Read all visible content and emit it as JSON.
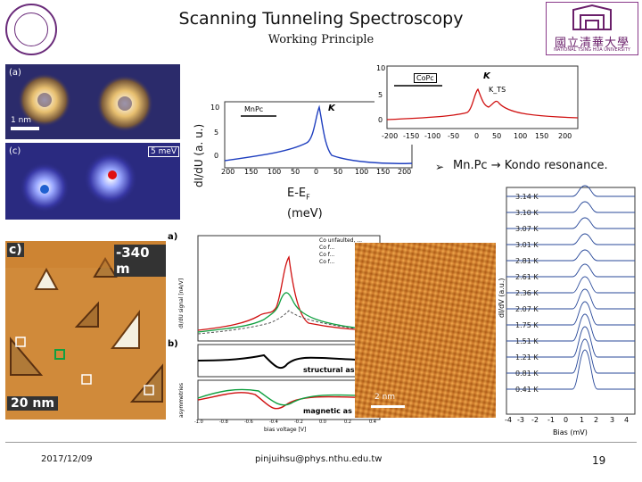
{
  "header": {
    "title": "Scanning Tunneling Spectroscopy",
    "subtitle": "Working Principle",
    "logo_text_cn": "國立清華大學",
    "logo_text_en": "NATIONAL TSING HUA UNIVERSITY"
  },
  "stm_panels": {
    "a_label": "(a)",
    "a_scale": "1 nm",
    "c_label": "(c)",
    "c_scale": "5 meV"
  },
  "spectrum_plot": {
    "ylabel": "dI/dU (a. u.)",
    "legend": "MnPc",
    "peak_label": "K",
    "y_ticks": [
      "10",
      "5",
      "0"
    ],
    "x_ticks": [
      "200",
      "150",
      "100",
      "50",
      "0",
      "50",
      "100",
      "150",
      "200"
    ]
  },
  "top_right_plot": {
    "legend": "CoPc",
    "peak_label": "K",
    "side_peak_label": "K_TS",
    "y_ticks": [
      "10",
      "5",
      "0"
    ],
    "x_ticks": [
      "-200",
      "-150",
      "-100",
      "-50",
      "0",
      "50",
      "100",
      "150",
      "200"
    ]
  },
  "xlabel": {
    "line1": "E-E",
    "sub": "F",
    "line2": "(meV)"
  },
  "bullet": {
    "marker": "➢",
    "text": "Mn.Pc → Kondo resonance."
  },
  "triangles_panel": {
    "label": "c)",
    "bias": "-340 m",
    "scale": "20 nm"
  },
  "spectra_panel": {
    "label_a": "a)",
    "label_b": "b)",
    "legend": [
      "Co unfaulted, ...",
      "Co f...",
      "Co f...",
      "Co f..."
    ],
    "ylabel_a": "dI/dU signal [nA/V]",
    "ylabel_b": "asymmetries",
    "text_structural": "structural as",
    "text_magnetic": "magnetic as",
    "xlabel": "bias voltage [V]",
    "x_ticks": [
      "-1.0",
      "-0.8",
      "-0.6",
      "-0.4",
      "-0.2",
      "0.0",
      "0.2",
      "0.4"
    ]
  },
  "lattice_panel": {
    "scale": "2 nm"
  },
  "temperature_panel": {
    "temps": [
      "3.14 K",
      "3.10 K",
      "3.07 K",
      "3.01 K",
      "2.81 K",
      "2.61 K",
      "2.36 K",
      "2.07 K",
      "1.75 K",
      "1.51 K",
      "1.21 K",
      "0.81 K",
      "0.41 K"
    ],
    "ylabel": "dI/dV (a.u.)",
    "x_ticks": [
      "-4",
      "-3",
      "-2",
      "-1",
      "0",
      "1",
      "2",
      "3",
      "4"
    ],
    "xlabel": "Bias (mV)"
  },
  "footer": {
    "date": "2017/12/09",
    "email": "pinjuihsu@phys.nthu.edu.tw",
    "page": "19"
  },
  "colors": {
    "purple": "#6a1f6a",
    "blue_curve": "#1f3fbf",
    "red_curve": "#d01010",
    "stm_blue": "#2030a0"
  }
}
